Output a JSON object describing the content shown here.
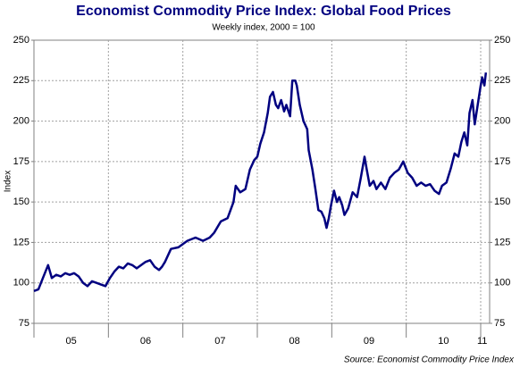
{
  "chart_data": {
    "type": "line",
    "title": "Economist Commodity Price Index: Global Food Prices",
    "subtitle": "Weekly index, 2000 = 100",
    "y_label": "Index",
    "source": "Source: Economist Commodity Price Index",
    "color": "#000080",
    "x": [
      2005.0,
      2005.06,
      2005.12,
      2005.19,
      2005.24,
      2005.3,
      2005.36,
      2005.42,
      2005.48,
      2005.54,
      2005.6,
      2005.66,
      2005.72,
      2005.78,
      2005.84,
      2005.9,
      2005.96,
      2006.02,
      2006.08,
      2006.14,
      2006.2,
      2006.26,
      2006.32,
      2006.38,
      2006.44,
      2006.5,
      2006.56,
      2006.62,
      2006.68,
      2006.72,
      2006.76,
      2006.84,
      2006.94,
      2007.06,
      2007.17,
      2007.27,
      2007.36,
      2007.42,
      2007.51,
      2007.6,
      2007.68,
      2007.71,
      2007.77,
      2007.84,
      2007.9,
      2007.96,
      2008.0,
      2008.04,
      2008.09,
      2008.14,
      2008.17,
      2008.21,
      2008.25,
      2008.28,
      2008.32,
      2008.36,
      2008.39,
      2008.44,
      2008.47,
      2008.51,
      2008.53,
      2008.57,
      2008.62,
      2008.67,
      2008.69,
      2008.74,
      2008.78,
      2008.82,
      2008.86,
      2008.9,
      2008.93,
      2008.96,
      2008.99,
      2009.03,
      2009.07,
      2009.1,
      2009.14,
      2009.17,
      2009.22,
      2009.28,
      2009.34,
      2009.39,
      2009.44,
      2009.47,
      2009.51,
      2009.56,
      2009.6,
      2009.66,
      2009.72,
      2009.78,
      2009.84,
      2009.9,
      2009.96,
      2010.02,
      2010.08,
      2010.14,
      2010.2,
      2010.26,
      2010.32,
      2010.38,
      2010.44,
      2010.48,
      2010.54,
      2010.6,
      2010.65,
      2010.7,
      2010.74,
      2010.78,
      2010.82,
      2010.85,
      2010.89,
      2010.92,
      2010.96,
      2011.0,
      2011.02,
      2011.05,
      2011.07
    ],
    "values": [
      95,
      96,
      103,
      111,
      103,
      105,
      104,
      106,
      105,
      106,
      104,
      100,
      98,
      101,
      100,
      99,
      98,
      103,
      107,
      110,
      109,
      112,
      111,
      109,
      111,
      113,
      114,
      110,
      108,
      110,
      113,
      121,
      122,
      126,
      128,
      126,
      128,
      131,
      138,
      140,
      150,
      160,
      156,
      158,
      170,
      176,
      178,
      186,
      193,
      205,
      215,
      218,
      210,
      208,
      213,
      206,
      210,
      203,
      225,
      225,
      222,
      210,
      200,
      195,
      182,
      170,
      158,
      145,
      144,
      140,
      134,
      140,
      148,
      157,
      150,
      153,
      148,
      142,
      146,
      156,
      153,
      165,
      178,
      170,
      160,
      163,
      158,
      162,
      158,
      165,
      168,
      170,
      175,
      168,
      165,
      160,
      162,
      160,
      161,
      157,
      155,
      160,
      162,
      171,
      180,
      178,
      187,
      193,
      185,
      205,
      213,
      198,
      210,
      222,
      227,
      222,
      230
    ],
    "xlim": [
      2005,
      2011.12
    ],
    "xticks": [
      {
        "value": 2005.5,
        "label": "05"
      },
      {
        "value": 2006.5,
        "label": "06"
      },
      {
        "value": 2007.5,
        "label": "07"
      },
      {
        "value": 2008.5,
        "label": "08"
      },
      {
        "value": 2009.5,
        "label": "09"
      },
      {
        "value": 2010.5,
        "label": "10"
      },
      {
        "value": 2011.02,
        "label": "11"
      }
    ],
    "xgrid": [
      2006,
      2007,
      2008,
      2009,
      2010,
      2011
    ],
    "ylim": [
      75,
      250
    ],
    "yticks": [
      75,
      100,
      125,
      150,
      175,
      200,
      225,
      250
    ],
    "grid": true
  }
}
